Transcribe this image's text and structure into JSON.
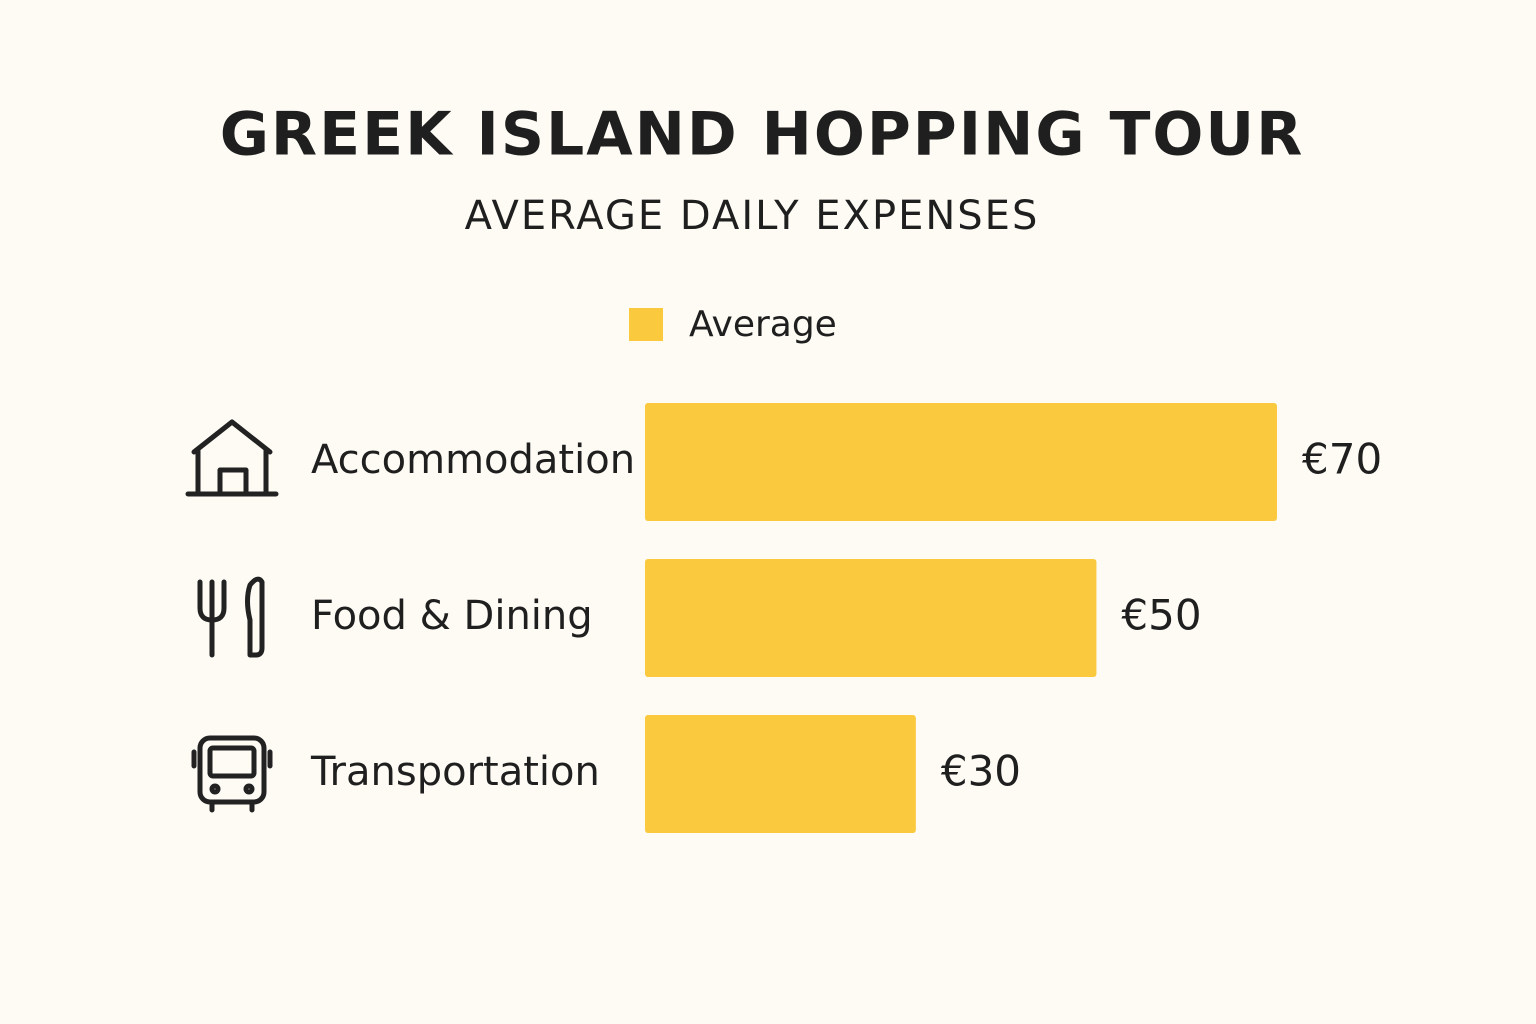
{
  "chart_data": {
    "type": "hbar",
    "title": "GREEK ISLAND HOPPING TOUR",
    "subtitle": "AVERAGE DAILY EXPENSES",
    "categories": [
      "Accommodation",
      "Food & Dining",
      "Transportation"
    ],
    "series": [
      {
        "name": "Average",
        "color": "#fbc93d",
        "values": [
          70,
          50,
          30
        ],
        "value_labels": [
          "€70",
          "€50",
          "€30"
        ]
      }
    ]
  }
}
